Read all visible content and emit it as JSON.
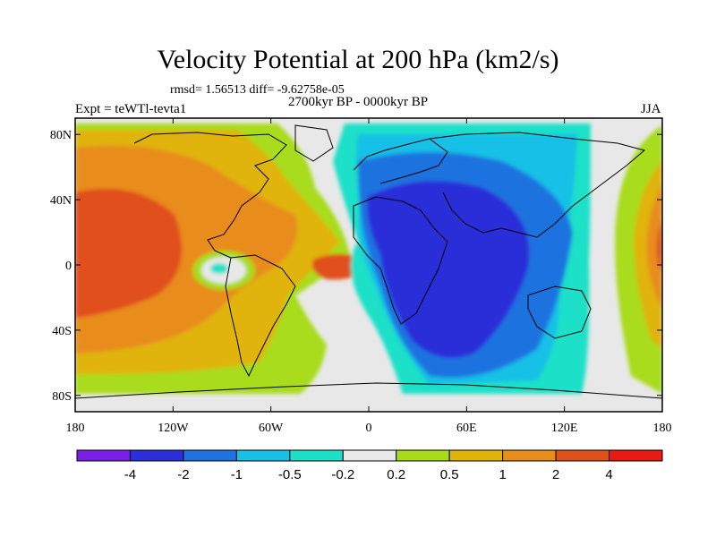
{
  "title": "Velocity Potential at 200 hPa (km2/s)",
  "stats": "rmsd= 1.56513 diff= -9.62758e-05",
  "left_label": "Expt = teWTl-tevta1",
  "center_label": "2700kyr BP - 0000kyr BP",
  "right_label": "JJA",
  "x_ticks": [
    {
      "lon": -180,
      "label": "180"
    },
    {
      "lon": -120,
      "label": "120W"
    },
    {
      "lon": -60,
      "label": "60W"
    },
    {
      "lon": 0,
      "label": "0"
    },
    {
      "lon": 60,
      "label": "60E"
    },
    {
      "lon": 120,
      "label": "120E"
    },
    {
      "lon": 180,
      "label": "180"
    }
  ],
  "y_ticks": [
    {
      "lat": 80,
      "label": "80N"
    },
    {
      "lat": 40,
      "label": "40N"
    },
    {
      "lat": 0,
      "label": "0"
    },
    {
      "lat": -40,
      "label": "40S"
    },
    {
      "lat": -80,
      "label": "80S"
    }
  ],
  "colorbar": {
    "colors": [
      "#7a1fe6",
      "#2b2fd9",
      "#1f73e0",
      "#19c0e6",
      "#1ee0c8",
      "#e8e8e8",
      "#a8dc1a",
      "#e0b40a",
      "#e88c1a",
      "#e0501a",
      "#e81a12"
    ],
    "labels": [
      "-4",
      "-2",
      "-1",
      "-0.5",
      "-0.2",
      "0.2",
      "0.5",
      "1",
      "2",
      "4"
    ]
  },
  "colors": {
    "ocean_background": "#e8e8e8",
    "strong_negative": "#2b2fd9",
    "moderate_negative": "#1f73e0",
    "weak_negative": "#19c0e6",
    "slight_negative": "#1ee0c8",
    "slight_positive": "#a8dc1a",
    "weak_positive": "#e0b40a",
    "moderate_positive": "#e88c1a",
    "strong_positive": "#e0501a"
  }
}
